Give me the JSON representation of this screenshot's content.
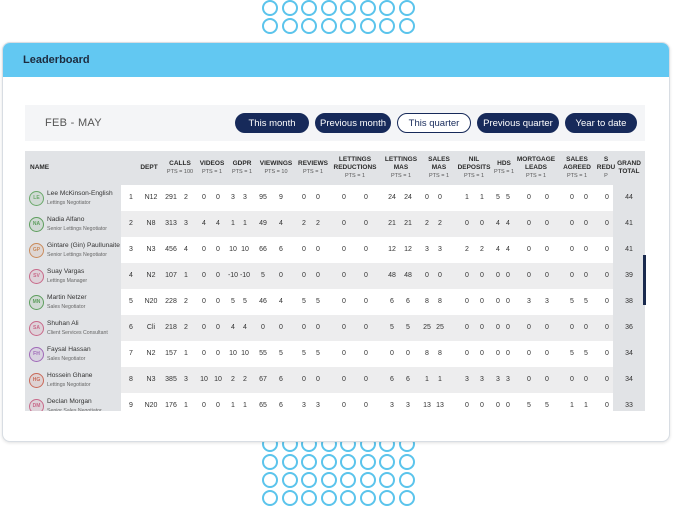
{
  "header": {
    "title": "Leaderboard"
  },
  "period": {
    "label": "FEB - MAY",
    "buttons": [
      {
        "label": "This month",
        "active": false
      },
      {
        "label": "Previous month",
        "active": false
      },
      {
        "label": "This quarter",
        "active": true
      },
      {
        "label": "Previous quarter",
        "active": false
      },
      {
        "label": "Year to date",
        "active": false
      }
    ]
  },
  "columns": [
    {
      "title": "NAME",
      "sub": ""
    },
    {
      "title": "DEPT",
      "sub": ""
    },
    {
      "title": "CALLS",
      "sub": "PTS = 100"
    },
    {
      "title": "VIDEOS",
      "sub": "PTS = 1"
    },
    {
      "title": "GDPR",
      "sub": "PTS = 1"
    },
    {
      "title": "VIEWINGS",
      "sub": "PTS = 10"
    },
    {
      "title": "REVIEWS",
      "sub": "PTS = 1"
    },
    {
      "title": "LETTINGS REDUCTIONS",
      "sub": "PTS = 1"
    },
    {
      "title": "LETTINGS MAS",
      "sub": "PTS = 1"
    },
    {
      "title": "SALES MAS",
      "sub": "PTS = 1"
    },
    {
      "title": "NIL DEPOSITS",
      "sub": "PTS = 1"
    },
    {
      "title": "HDS",
      "sub": "PTS = 1"
    },
    {
      "title": "MORTGAGE LEADS",
      "sub": "PTS = 1"
    },
    {
      "title": "SALES AGREED",
      "sub": "PTS = 1"
    },
    {
      "title": "S REDU",
      "sub": "P"
    },
    {
      "title": "GRAND TOTAL",
      "sub": ""
    }
  ],
  "rows": [
    {
      "initials": "LE",
      "color": "#6aa86a",
      "name": "Lee McKinson-English",
      "role": "Lettings Negotiator",
      "rank": "1",
      "dept": "N12",
      "calls": [
        "291",
        "2"
      ],
      "videos": [
        "0",
        "0"
      ],
      "gdpr": [
        "3",
        "3"
      ],
      "viewings": [
        "95",
        "9"
      ],
      "reviews": [
        "0",
        "0"
      ],
      "let_red": [
        "0",
        "0"
      ],
      "let_mas": [
        "24",
        "24"
      ],
      "sales_mas": [
        "0",
        "0"
      ],
      "nil": [
        "1",
        "1"
      ],
      "hds": [
        "5",
        "5"
      ],
      "mort": [
        "0",
        "0"
      ],
      "agreed": [
        "0",
        "0"
      ],
      "sredu": "0",
      "total": "44"
    },
    {
      "initials": "NA",
      "color": "#5e9e5e",
      "name": "Nadia Alfano",
      "role": "Senior Lettings Negotiator",
      "rank": "2",
      "dept": "N8",
      "calls": [
        "313",
        "3"
      ],
      "videos": [
        "4",
        "4"
      ],
      "gdpr": [
        "1",
        "1"
      ],
      "viewings": [
        "49",
        "4"
      ],
      "reviews": [
        "2",
        "2"
      ],
      "let_red": [
        "0",
        "0"
      ],
      "let_mas": [
        "21",
        "21"
      ],
      "sales_mas": [
        "2",
        "2"
      ],
      "nil": [
        "0",
        "0"
      ],
      "hds": [
        "4",
        "4"
      ],
      "mort": [
        "0",
        "0"
      ],
      "agreed": [
        "0",
        "0"
      ],
      "sredu": "0",
      "total": "41"
    },
    {
      "initials": "GP",
      "color": "#c98a5a",
      "name": "Gintare (Gin) PaulIunaite",
      "role": "Senior Lettings Negotiator",
      "rank": "3",
      "dept": "N3",
      "calls": [
        "456",
        "4"
      ],
      "videos": [
        "0",
        "0"
      ],
      "gdpr": [
        "10",
        "10"
      ],
      "viewings": [
        "66",
        "6"
      ],
      "reviews": [
        "0",
        "0"
      ],
      "let_red": [
        "0",
        "0"
      ],
      "let_mas": [
        "12",
        "12"
      ],
      "sales_mas": [
        "3",
        "3"
      ],
      "nil": [
        "2",
        "2"
      ],
      "hds": [
        "4",
        "4"
      ],
      "mort": [
        "0",
        "0"
      ],
      "agreed": [
        "0",
        "0"
      ],
      "sredu": "0",
      "total": "41"
    },
    {
      "initials": "SV",
      "color": "#c86a8a",
      "name": "Suay Vargas",
      "role": "Lettings Manager",
      "rank": "4",
      "dept": "N2",
      "calls": [
        "107",
        "1"
      ],
      "videos": [
        "0",
        "0"
      ],
      "gdpr": [
        "-10",
        "-10"
      ],
      "viewings": [
        "5",
        "0"
      ],
      "reviews": [
        "0",
        "0"
      ],
      "let_red": [
        "0",
        "0"
      ],
      "let_mas": [
        "48",
        "48"
      ],
      "sales_mas": [
        "0",
        "0"
      ],
      "nil": [
        "0",
        "0"
      ],
      "hds": [
        "0",
        "0"
      ],
      "mort": [
        "0",
        "0"
      ],
      "agreed": [
        "0",
        "0"
      ],
      "sredu": "0",
      "total": "39"
    },
    {
      "initials": "MN",
      "color": "#5e9e5e",
      "name": "Martin Netzer",
      "role": "Sales Negotiator",
      "rank": "5",
      "dept": "N20",
      "calls": [
        "228",
        "2"
      ],
      "videos": [
        "0",
        "0"
      ],
      "gdpr": [
        "5",
        "5"
      ],
      "viewings": [
        "46",
        "4"
      ],
      "reviews": [
        "5",
        "5"
      ],
      "let_red": [
        "0",
        "0"
      ],
      "let_mas": [
        "6",
        "6"
      ],
      "sales_mas": [
        "8",
        "8"
      ],
      "nil": [
        "0",
        "0"
      ],
      "hds": [
        "0",
        "0"
      ],
      "mort": [
        "3",
        "3"
      ],
      "agreed": [
        "5",
        "5"
      ],
      "sredu": "0",
      "total": "38"
    },
    {
      "initials": "SA",
      "color": "#c86a8a",
      "name": "Shuhan Ali",
      "role": "Client Services Consultant",
      "rank": "6",
      "dept": "Cli",
      "calls": [
        "218",
        "2"
      ],
      "videos": [
        "0",
        "0"
      ],
      "gdpr": [
        "4",
        "4"
      ],
      "viewings": [
        "0",
        "0"
      ],
      "reviews": [
        "0",
        "0"
      ],
      "let_red": [
        "0",
        "0"
      ],
      "let_mas": [
        "5",
        "5"
      ],
      "sales_mas": [
        "25",
        "25"
      ],
      "nil": [
        "0",
        "0"
      ],
      "hds": [
        "0",
        "0"
      ],
      "mort": [
        "0",
        "0"
      ],
      "agreed": [
        "0",
        "0"
      ],
      "sredu": "0",
      "total": "36"
    },
    {
      "initials": "FH",
      "color": "#a06ab8",
      "name": "Faysal Hassan",
      "role": "Sales Negotiator",
      "rank": "7",
      "dept": "N2",
      "calls": [
        "157",
        "1"
      ],
      "videos": [
        "0",
        "0"
      ],
      "gdpr": [
        "10",
        "10"
      ],
      "viewings": [
        "55",
        "5"
      ],
      "reviews": [
        "5",
        "5"
      ],
      "let_red": [
        "0",
        "0"
      ],
      "let_mas": [
        "0",
        "0"
      ],
      "sales_mas": [
        "8",
        "8"
      ],
      "nil": [
        "0",
        "0"
      ],
      "hds": [
        "0",
        "0"
      ],
      "mort": [
        "0",
        "0"
      ],
      "agreed": [
        "5",
        "5"
      ],
      "sredu": "0",
      "total": "34"
    },
    {
      "initials": "HG",
      "color": "#c96a5a",
      "name": "Hossein Ghane",
      "role": "Lettings Negotiator",
      "rank": "8",
      "dept": "N3",
      "calls": [
        "385",
        "3"
      ],
      "videos": [
        "10",
        "10"
      ],
      "gdpr": [
        "2",
        "2"
      ],
      "viewings": [
        "67",
        "6"
      ],
      "reviews": [
        "0",
        "0"
      ],
      "let_red": [
        "0",
        "0"
      ],
      "let_mas": [
        "6",
        "6"
      ],
      "sales_mas": [
        "1",
        "1"
      ],
      "nil": [
        "3",
        "3"
      ],
      "hds": [
        "3",
        "3"
      ],
      "mort": [
        "0",
        "0"
      ],
      "agreed": [
        "0",
        "0"
      ],
      "sredu": "0",
      "total": "34"
    },
    {
      "initials": "DM",
      "color": "#c86a8a",
      "name": "Declan Morgan",
      "role": "Senior Sales Negotiator",
      "rank": "9",
      "dept": "N20",
      "calls": [
        "176",
        "1"
      ],
      "videos": [
        "0",
        "0"
      ],
      "gdpr": [
        "1",
        "1"
      ],
      "viewings": [
        "65",
        "6"
      ],
      "reviews": [
        "3",
        "3"
      ],
      "let_red": [
        "0",
        "0"
      ],
      "let_mas": [
        "3",
        "3"
      ],
      "sales_mas": [
        "13",
        "13"
      ],
      "nil": [
        "0",
        "0"
      ],
      "hds": [
        "0",
        "0"
      ],
      "mort": [
        "5",
        "5"
      ],
      "agreed": [
        "1",
        "1"
      ],
      "sredu": "0",
      "total": "33"
    }
  ]
}
